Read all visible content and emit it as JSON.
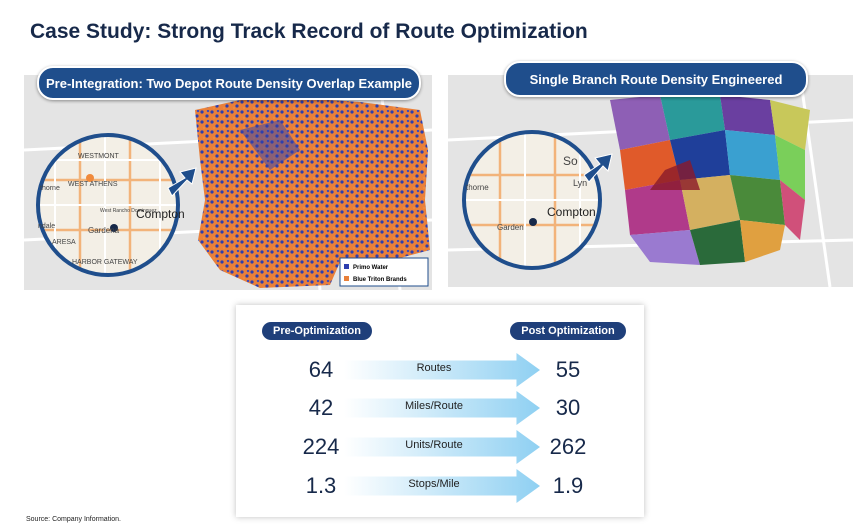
{
  "header": {
    "title": "Case Study: Strong Track Record of Route Optimization"
  },
  "left_panel": {
    "label": "Pre-Integration: Two Depot Route Density Overlap Example",
    "map_labels": [
      "WESTMONT",
      "WEST ATHENS",
      "thorne",
      "ndale",
      "West Rancho Dominguez",
      "Gardena",
      "Compton",
      "ARESA",
      "HARBOR GATEWAY"
    ],
    "legend": [
      "Primo Water",
      "Blue Triton Brands"
    ]
  },
  "right_panel": {
    "label": "Single Branch Route Density Engineered",
    "map_labels": [
      "So",
      "Lyn",
      "thorne",
      "Compton",
      "Garden"
    ]
  },
  "table": {
    "headers": [
      "Pre-Optimization",
      "Post Optimization"
    ],
    "rows": [
      [
        64,
        "Routes",
        55
      ],
      [
        42,
        "Miles/Route",
        30
      ],
      [
        224,
        "Units/Route",
        262
      ],
      [
        1.3,
        "Stops/Mile",
        1.9
      ]
    ]
  },
  "footer": {
    "source": "Source:  Company Information."
  }
}
